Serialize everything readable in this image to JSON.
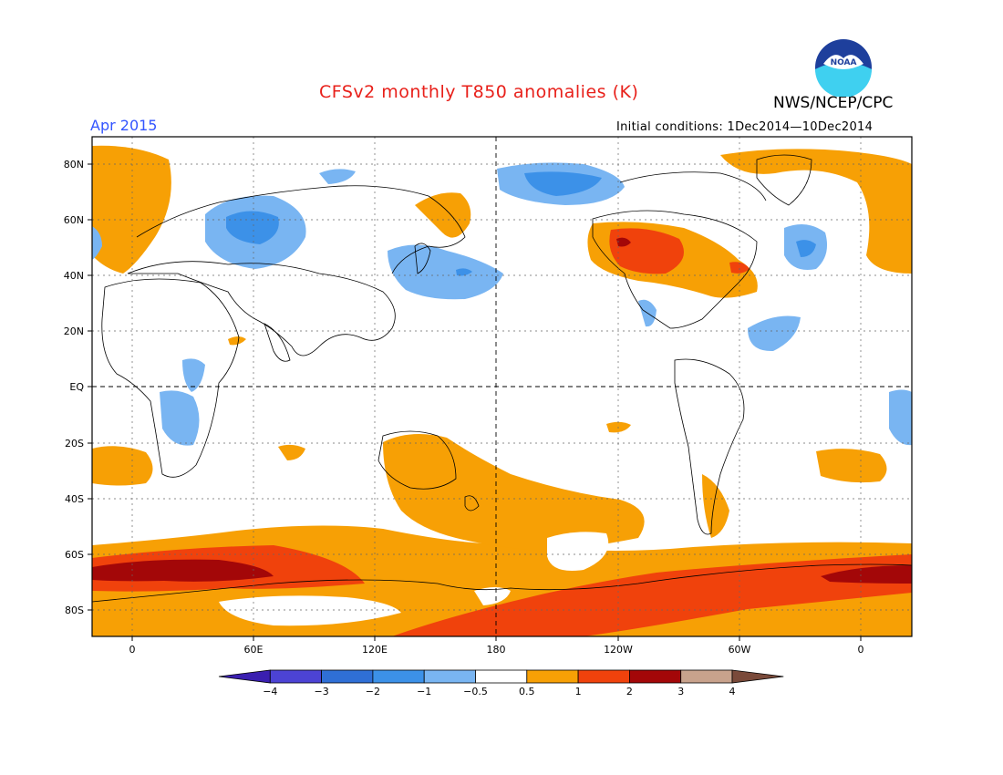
{
  "header": {
    "title": "CFSv2 monthly T850 anomalies (K)",
    "forecast_month": "Apr 2015",
    "initial_conditions": "Initial conditions: 1Dec2014—10Dec2014",
    "agency": "NWS/NCEP/CPC",
    "logo_text": "NOAA"
  },
  "map": {
    "lat_labels": [
      "80N",
      "60N",
      "40N",
      "20N",
      "EQ",
      "20S",
      "40S",
      "60S",
      "80S"
    ],
    "lon_labels": [
      "0",
      "60E",
      "120E",
      "180",
      "120W",
      "60W",
      "0"
    ],
    "colors": {
      "cold_dark_1": "#3a1fb0",
      "cold_2": "#4c43d4",
      "cold_3": "#2f6fd6",
      "cold_4": "#3c91e8",
      "cold_5": "#79b5f2",
      "neutral": "#ffffff",
      "warm_1": "#f7a005",
      "warm_2": "#f0420c",
      "warm_3": "#a30708",
      "warm_4": "#c8a28c",
      "warm_5": "#7a4a3a"
    }
  },
  "colorbar": {
    "tick_labels": [
      "−4",
      "−3",
      "−2",
      "−1",
      "−0.5",
      "0.5",
      "1",
      "2",
      "3",
      "4"
    ],
    "bins": [
      {
        "color": "#3a1fb0"
      },
      {
        "color": "#4c43d4"
      },
      {
        "color": "#2f6fd6"
      },
      {
        "color": "#3c91e8"
      },
      {
        "color": "#79b5f2"
      },
      {
        "color": "#ffffff"
      },
      {
        "color": "#f7a005"
      },
      {
        "color": "#f0420c"
      },
      {
        "color": "#a30708"
      },
      {
        "color": "#c8a28c"
      },
      {
        "color": "#7a4a3a"
      }
    ]
  }
}
